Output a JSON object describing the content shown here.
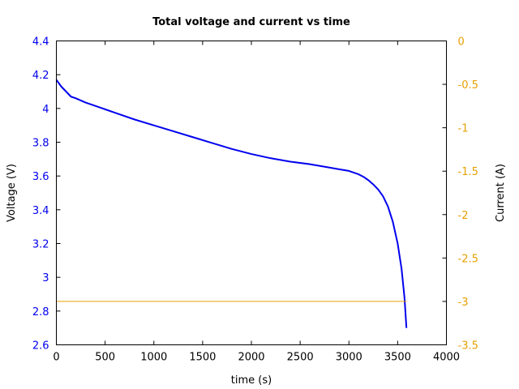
{
  "chart_data": {
    "type": "line",
    "title": "Total voltage and current vs time",
    "xlabel": "time (s)",
    "ylabel_left": "Voltage (V)",
    "ylabel_right": "Current (A)",
    "xlim": [
      0,
      4000
    ],
    "ylim_left": [
      2.6,
      4.4
    ],
    "ylim_right": [
      -3.5,
      0
    ],
    "x_ticks": [
      0,
      500,
      1000,
      1500,
      2000,
      2500,
      3000,
      3500,
      4000
    ],
    "y_left_ticks": [
      2.6,
      2.8,
      3,
      3.2,
      3.4,
      3.6,
      3.8,
      4,
      4.2,
      4.4
    ],
    "y_right_ticks": [
      0,
      -0.5,
      -1,
      -1.5,
      -2,
      -2.5,
      -3,
      -3.5
    ],
    "grid": false,
    "colors": {
      "voltage": "#0000ee",
      "current": "#e6a000",
      "left_axis_text": "#0000ee",
      "right_axis_text": "#e6a000"
    },
    "series": [
      {
        "axis": "left",
        "x": [
          0,
          50,
          100,
          150,
          200,
          300,
          400,
          500,
          600,
          800,
          1000,
          1200,
          1400,
          1600,
          1800,
          2000,
          2200,
          2400,
          2600,
          2800,
          2900,
          3000,
          3100,
          3150,
          3200,
          3250,
          3300,
          3350,
          3400,
          3450,
          3500,
          3540,
          3570,
          3590
        ],
        "values": [
          4.17,
          4.13,
          4.1,
          4.07,
          4.06,
          4.035,
          4.015,
          3.995,
          3.975,
          3.935,
          3.9,
          3.865,
          3.83,
          3.795,
          3.76,
          3.73,
          3.705,
          3.685,
          3.67,
          3.65,
          3.64,
          3.63,
          3.61,
          3.595,
          3.575,
          3.55,
          3.52,
          3.48,
          3.42,
          3.33,
          3.2,
          3.05,
          2.88,
          2.7
        ]
      },
      {
        "axis": "right",
        "x": [
          0,
          3590
        ],
        "values": [
          -3,
          -3
        ]
      }
    ]
  }
}
